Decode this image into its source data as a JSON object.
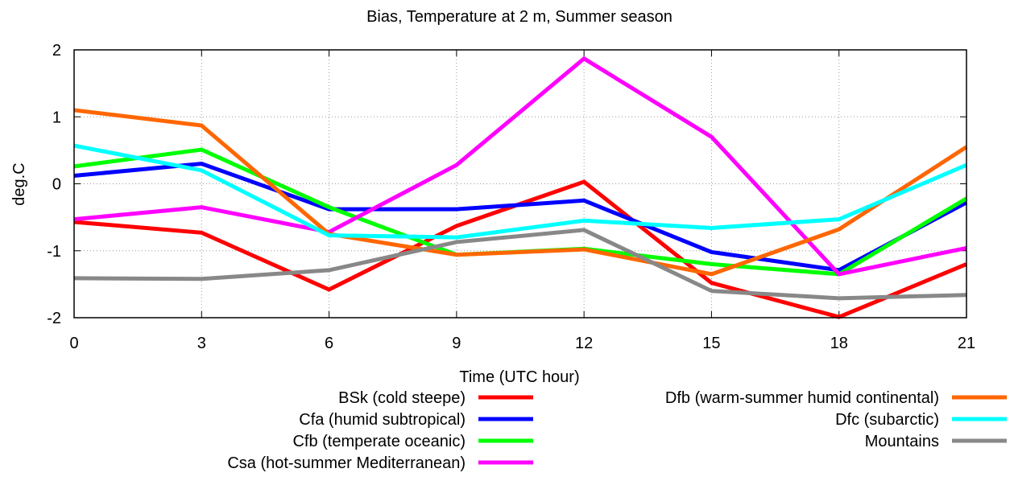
{
  "chart_data": {
    "type": "line",
    "title": "Bias, Temperature at 2 m, Summer season",
    "xlabel": "Time (UTC hour)",
    "ylabel": "deg.C",
    "x": [
      0,
      3,
      6,
      9,
      12,
      15,
      18,
      21
    ],
    "x_ticks": [
      "0",
      "3",
      "6",
      "9",
      "12",
      "15",
      "18",
      "21"
    ],
    "y_ticks": [
      "-2",
      "-1",
      "0",
      "1",
      "2"
    ],
    "xlim": [
      0,
      21
    ],
    "ylim": [
      -2,
      2
    ],
    "grid": true,
    "legend_position": "bottom",
    "series": [
      {
        "name": "BSk (cold steepe)",
        "color": "#ff0000",
        "values": [
          -0.57,
          -0.73,
          -1.58,
          -0.63,
          0.03,
          -1.48,
          -1.99,
          -1.2
        ]
      },
      {
        "name": "Cfa (humid subtropical)",
        "color": "#0000ff",
        "values": [
          0.12,
          0.3,
          -0.38,
          -0.38,
          -0.25,
          -1.02,
          -1.29,
          -0.28
        ]
      },
      {
        "name": "Cfb (temperate oceanic)",
        "color": "#00ff00",
        "values": [
          0.26,
          0.51,
          -0.35,
          -1.06,
          -0.97,
          -1.2,
          -1.35,
          -0.22
        ]
      },
      {
        "name": "Csa (hot-summer Mediterranean)",
        "color": "#ff00ff",
        "values": [
          -0.53,
          -0.35,
          -0.72,
          0.28,
          1.87,
          0.7,
          -1.35,
          -0.96
        ]
      },
      {
        "name": "Dfb (warm-summer humid continental)",
        "color": "#ff6600",
        "values": [
          1.1,
          0.87,
          -0.75,
          -1.06,
          -0.98,
          -1.35,
          -0.68,
          0.55
        ]
      },
      {
        "name": "Dfc (subarctic)",
        "color": "#00ffff",
        "values": [
          0.57,
          0.2,
          -0.77,
          -0.8,
          -0.55,
          -0.66,
          -0.53,
          0.28
        ]
      },
      {
        "name": "Mountains",
        "color": "#888888",
        "values": [
          -1.41,
          -1.42,
          -1.29,
          -0.87,
          -0.69,
          -1.6,
          -1.71,
          -1.66
        ]
      }
    ]
  }
}
